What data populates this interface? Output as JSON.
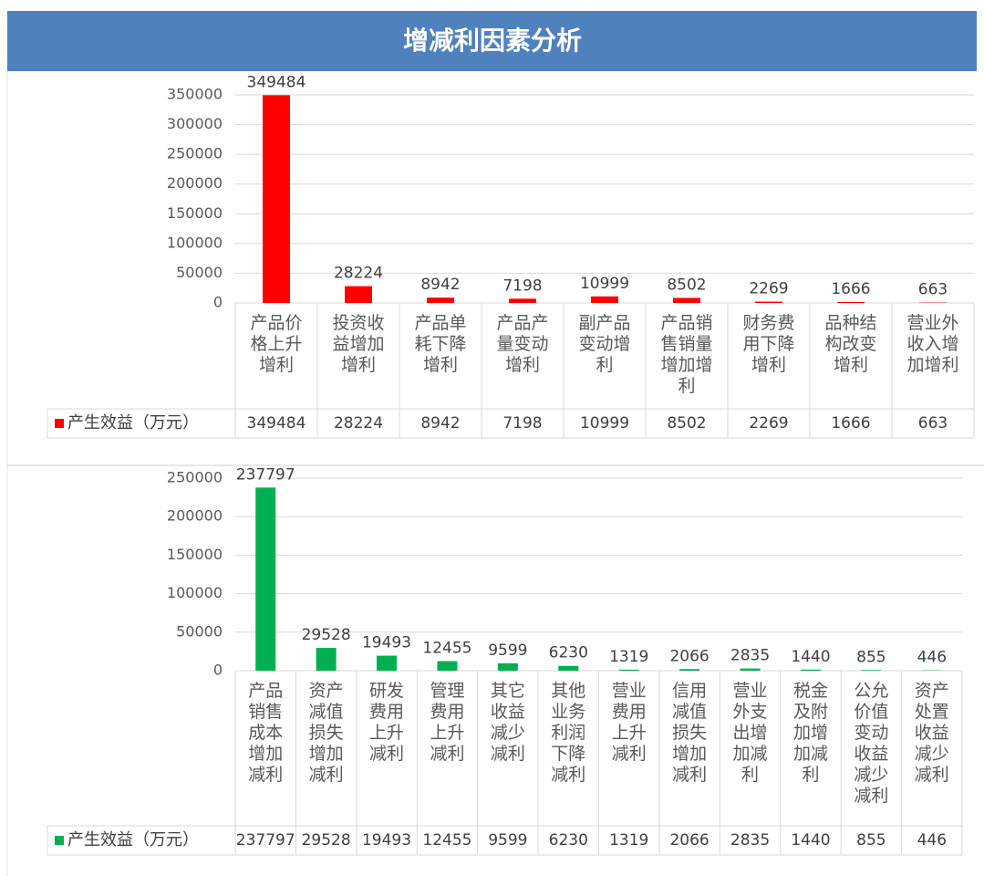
{
  "title": "增减利因素分析",
  "chart_data": [
    {
      "type": "bar",
      "categories": [
        "产品价格上升增利",
        "投资收益增加增利",
        "产品单耗下降增利",
        "产品产量变动增利",
        "副产品变动增利",
        "产品销售销量增加增利",
        "财务费用下降增利",
        "品种结构改变增利",
        "营业外收入增加增利"
      ],
      "series": [
        {
          "name": "产生效益（万元）",
          "color": "#ff0000",
          "values": [
            349484,
            28224,
            8942,
            7198,
            10999,
            8502,
            2269,
            1666,
            663
          ]
        }
      ],
      "ylim": [
        0,
        350000
      ],
      "yticks": [
        0,
        50000,
        100000,
        150000,
        200000,
        250000,
        300000,
        350000
      ],
      "grid": true
    },
    {
      "type": "bar",
      "categories": [
        "产品销售成本增加减利",
        "资产减值损失增加减利",
        "研发费用上升减利",
        "管理费用上升减利",
        "其它收益减少减利",
        "其他业务利润下降减利",
        "营业费用上升减利",
        "信用减值损失增加减利",
        "营业外支出增加减利",
        "税金及附加增加减利",
        "公允价值变动收益减少减利",
        "资产处置收益减少减利"
      ],
      "series": [
        {
          "name": "产生效益（万元）",
          "color": "#00b050",
          "values": [
            237797,
            29528,
            19493,
            12455,
            9599,
            6230,
            1319,
            2066,
            2835,
            1440,
            855,
            446
          ]
        }
      ],
      "ylim": [
        0,
        250000
      ],
      "yticks": [
        0,
        50000,
        100000,
        150000,
        200000,
        250000
      ],
      "grid": true
    }
  ]
}
